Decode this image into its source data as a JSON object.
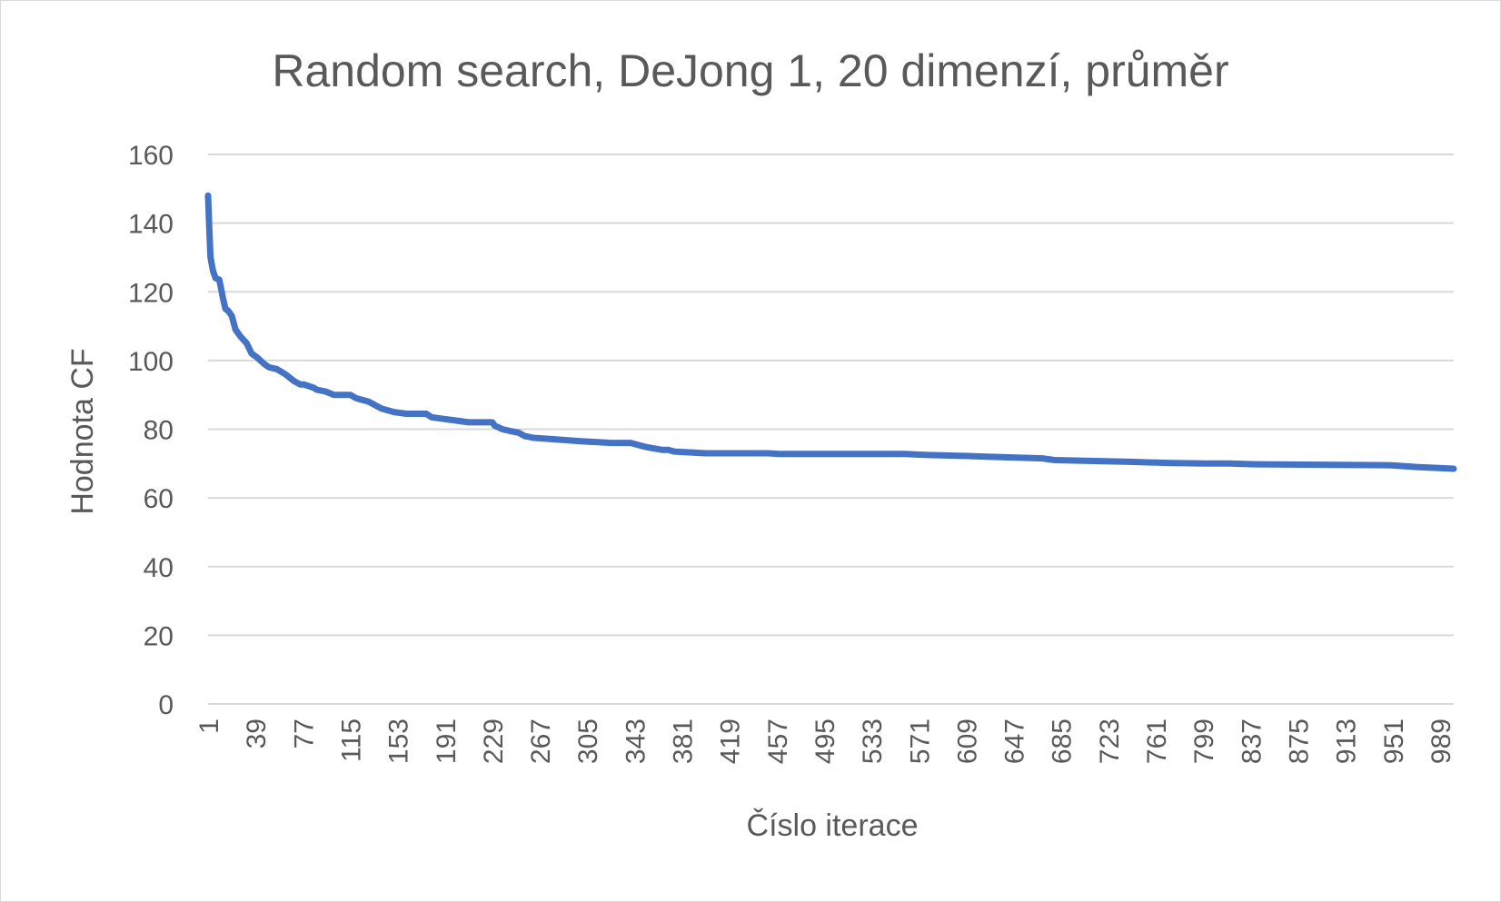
{
  "chart_data": {
    "type": "line",
    "title": "Random search, DeJong 1, 20 dimenzí, průměr",
    "xlabel": "Číslo iterace",
    "ylabel": "Hodnota CF",
    "ylim": [
      0,
      160
    ],
    "yticks": [
      0,
      20,
      40,
      60,
      80,
      100,
      120,
      140,
      160
    ],
    "xticks": [
      "1",
      "39",
      "77",
      "115",
      "153",
      "191",
      "229",
      "267",
      "305",
      "343",
      "381",
      "419",
      "457",
      "495",
      "533",
      "571",
      "609",
      "647",
      "685",
      "723",
      "761",
      "799",
      "837",
      "875",
      "913",
      "951",
      "989"
    ],
    "xlim": [
      1,
      1000
    ],
    "grid": true,
    "legend": "none",
    "color": "#4472c4",
    "series": [
      {
        "x": [
          1,
          2,
          3,
          5,
          7,
          10,
          13,
          15,
          17,
          20,
          23,
          27,
          32,
          36,
          40,
          46,
          50,
          56,
          63,
          70,
          75,
          78,
          86,
          88,
          95,
          102,
          108,
          115,
          120,
          130,
          140,
          150,
          160,
          170,
          176,
          180,
          190,
          200,
          210,
          229,
          231,
          237,
          243,
          250,
          255,
          262,
          280,
          300,
          325,
          340,
          345,
          350,
          357,
          365,
          370,
          375,
          400,
          450,
          459,
          560,
          578,
          610,
          625,
          670,
          680,
          740,
          770,
          800,
          820,
          840,
          950,
          970,
          1000
        ],
        "y": [
          148,
          138,
          130,
          126,
          124,
          123.5,
          118,
          115,
          114.5,
          113,
          109,
          107,
          105,
          102,
          101,
          99,
          98,
          97.5,
          96,
          94,
          93,
          93,
          92,
          91.5,
          91,
          90,
          90,
          90,
          89,
          88,
          86,
          85,
          84.5,
          84.5,
          84.5,
          83.5,
          83,
          82.5,
          82,
          82,
          81,
          80,
          79.5,
          79,
          78,
          77.5,
          77,
          76.5,
          76,
          76,
          75.5,
          75,
          74.5,
          74,
          74,
          73.5,
          73,
          73,
          72.8,
          72.8,
          72.5,
          72.2,
          72,
          71.5,
          71,
          70.5,
          70.2,
          70,
          70,
          69.8,
          69.5,
          69,
          68.5
        ]
      }
    ]
  }
}
